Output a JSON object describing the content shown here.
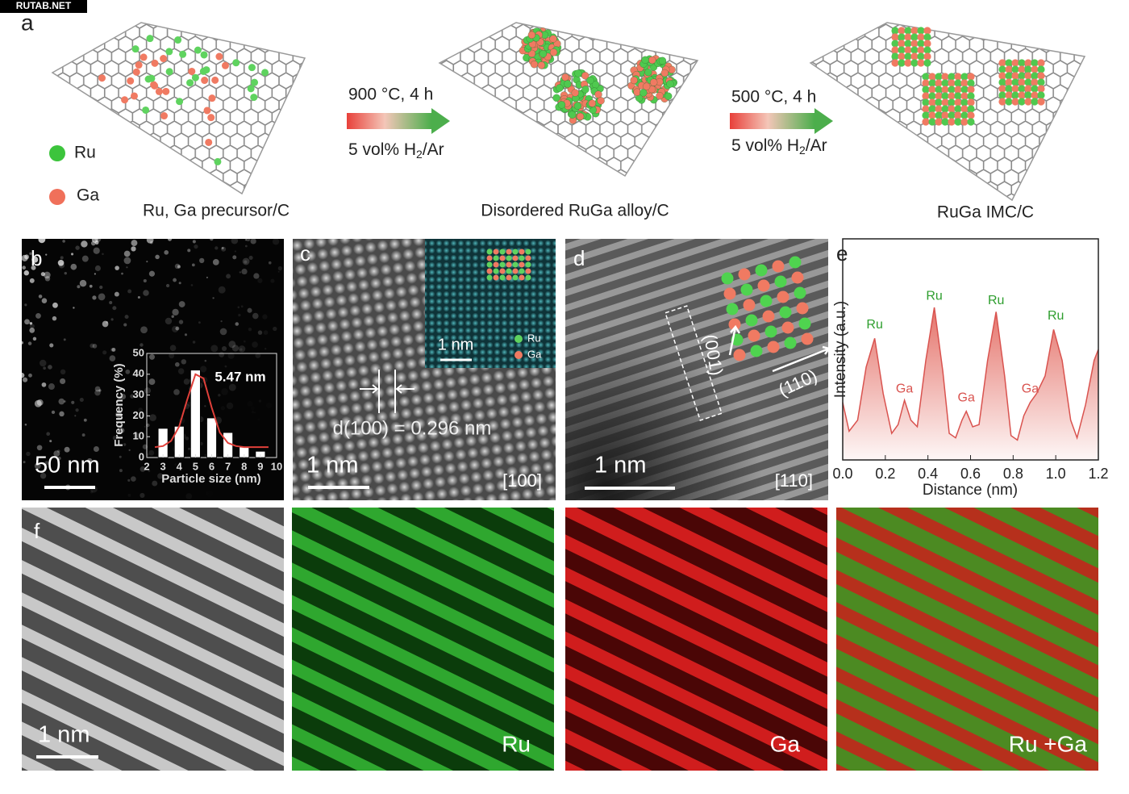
{
  "watermark": "RUTAB.NET",
  "panel_a": {
    "label": "a",
    "legend": [
      "Ru",
      "Ga"
    ],
    "stages": [
      "Ru, Ga precursor/C",
      "Disordered RuGa alloy/C",
      "RuGa IMC/C"
    ],
    "steps": [
      {
        "condition": "900 °C, 4 h",
        "gas": [
          "5 vol% H",
          "2",
          "/Ar"
        ]
      },
      {
        "condition": "500 °C, 4 h",
        "gas": [
          "5 vol% H",
          "2",
          "/Ar"
        ]
      }
    ]
  },
  "panel_b": {
    "label": "b",
    "scale_bar": "50 nm"
  },
  "panel_c": {
    "label": "c",
    "scale_bar": "1 nm",
    "d_spacing": "d(100) = 0.296 nm",
    "zone_axis": "[100]",
    "inset": {
      "scale_bar": "1 nm",
      "legend": [
        "Ru",
        "Ga"
      ]
    }
  },
  "panel_d": {
    "label": "d",
    "scale_bar": "1 nm",
    "zone_axis": "[110]",
    "directions": [
      "(001)",
      "(110)"
    ]
  },
  "panel_e": {
    "label": "e"
  },
  "panel_f": {
    "label": "f",
    "scale_bar": "1 nm",
    "maps": [
      "Ru",
      "Ga",
      "Ru +Ga"
    ]
  },
  "chart_data": [
    {
      "type": "bar",
      "xlabel": "Particle size (nm)",
      "ylabel": "Frequency (%)",
      "annotation": "5.47 nm",
      "x": [
        3,
        4,
        5,
        6,
        7,
        8,
        9
      ],
      "values": [
        14,
        15,
        42,
        19,
        12,
        5,
        3
      ],
      "color": "#ffffff",
      "xlim": [
        2,
        10
      ],
      "xticks": [
        2,
        3,
        4,
        5,
        6,
        7,
        8,
        9,
        10
      ],
      "ylim": [
        0,
        50
      ],
      "yticks": [
        0,
        10,
        20,
        30,
        40,
        50
      ],
      "fit": {
        "color": "#e0403a",
        "x": [
          2.5,
          3,
          3.5,
          4,
          4.5,
          5,
          5.5,
          6,
          6.5,
          7,
          7.5,
          8,
          8.5,
          9,
          9.5
        ],
        "values": [
          5,
          5.5,
          8,
          15,
          28,
          40,
          38,
          24,
          12,
          7,
          5.5,
          5,
          5,
          5,
          5
        ]
      }
    },
    {
      "type": "line",
      "xlabel": "Distance (nm)",
      "ylabel": "Intensity (a.u.)",
      "color": "#d9534f",
      "xlim": [
        0,
        1.2
      ],
      "ylim": [
        0,
        1
      ],
      "xticks": [
        {
          "value": 0,
          "label": "0.0"
        },
        0.2,
        0.4,
        0.6,
        0.8,
        {
          "value": 1,
          "label": "1.0"
        },
        1.2
      ],
      "x": [
        0,
        0.03,
        0.07,
        0.11,
        0.15,
        0.19,
        0.23,
        0.26,
        0.29,
        0.32,
        0.35,
        0.39,
        0.43,
        0.47,
        0.5,
        0.53,
        0.56,
        0.58,
        0.61,
        0.64,
        0.68,
        0.72,
        0.76,
        0.79,
        0.82,
        0.85,
        0.88,
        0.91,
        0.95,
        0.99,
        1.03,
        1.07,
        1.1,
        1.14,
        1.18,
        1.2
      ],
      "values": [
        0.26,
        0.13,
        0.18,
        0.42,
        0.55,
        0.3,
        0.12,
        0.16,
        0.27,
        0.18,
        0.15,
        0.45,
        0.69,
        0.4,
        0.12,
        0.1,
        0.18,
        0.22,
        0.15,
        0.16,
        0.45,
        0.67,
        0.38,
        0.11,
        0.09,
        0.2,
        0.26,
        0.3,
        0.38,
        0.59,
        0.45,
        0.18,
        0.1,
        0.25,
        0.45,
        0.5
      ],
      "annotations": [
        {
          "text": "Ru",
          "x": 0.15,
          "y": 0.61,
          "color": "#2e9e2e"
        },
        {
          "text": "Ga",
          "x": 0.29,
          "y": 0.32,
          "color": "#d9534f"
        },
        {
          "text": "Ru",
          "x": 0.43,
          "y": 0.74,
          "color": "#2e9e2e"
        },
        {
          "text": "Ga",
          "x": 0.58,
          "y": 0.28,
          "color": "#d9534f"
        },
        {
          "text": "Ru",
          "x": 0.72,
          "y": 0.72,
          "color": "#2e9e2e"
        },
        {
          "text": "Ga",
          "x": 0.88,
          "y": 0.32,
          "color": "#d9534f"
        },
        {
          "text": "Ru",
          "x": 1.0,
          "y": 0.65,
          "color": "#2e9e2e"
        }
      ]
    }
  ]
}
